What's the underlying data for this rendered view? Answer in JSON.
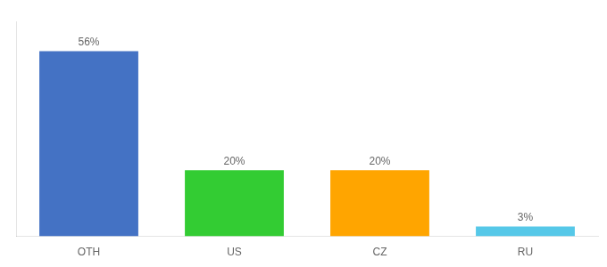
{
  "chart_data": {
    "type": "bar",
    "categories": [
      "OTH",
      "US",
      "CZ",
      "RU"
    ],
    "values": [
      56,
      20,
      20,
      3
    ],
    "value_labels": [
      "56%",
      "20%",
      "20%",
      "3%"
    ],
    "colors": [
      "#4472C4",
      "#33CC33",
      "#FFA500",
      "#56C8E8"
    ],
    "ylim": [
      0,
      65
    ],
    "data_labels": true,
    "tick_labels": "x",
    "grid": false
  }
}
